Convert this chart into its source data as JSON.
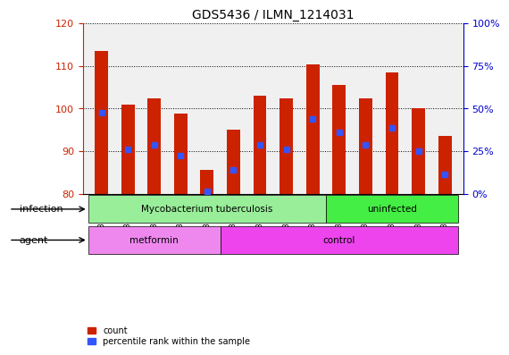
{
  "title": "GDS5436 / ILMN_1214031",
  "samples": [
    "GSM1378196",
    "GSM1378197",
    "GSM1378198",
    "GSM1378199",
    "GSM1378200",
    "GSM1378192",
    "GSM1378193",
    "GSM1378194",
    "GSM1378195",
    "GSM1378201",
    "GSM1378202",
    "GSM1378203",
    "GSM1378204",
    "GSM1378205"
  ],
  "bar_tops": [
    113.5,
    101.0,
    102.5,
    98.8,
    85.5,
    95.0,
    103.0,
    102.5,
    110.5,
    105.5,
    102.5,
    108.5,
    100.0,
    93.5
  ],
  "bar_bottoms": 80,
  "blue_values": [
    99.0,
    90.5,
    91.5,
    89.0,
    80.5,
    85.5,
    91.5,
    90.5,
    97.5,
    94.5,
    91.5,
    95.5,
    90.0,
    84.5
  ],
  "ylim_left": [
    80,
    120
  ],
  "yticks_left": [
    80,
    90,
    100,
    110,
    120
  ],
  "ylim_right": [
    0,
    100
  ],
  "yticks_right": [
    0,
    25,
    50,
    75,
    100
  ],
  "yright_labels": [
    "0%",
    "25%",
    "50%",
    "75%",
    "100%"
  ],
  "bar_color": "#cc2200",
  "blue_color": "#3355ff",
  "infection_groups": [
    {
      "label": "Mycobacterium tuberculosis",
      "start": 0,
      "end": 9,
      "color": "#99ee99"
    },
    {
      "label": "uninfected",
      "start": 9,
      "end": 14,
      "color": "#44ee44"
    }
  ],
  "agent_groups": [
    {
      "label": "metformin",
      "start": 0,
      "end": 5,
      "color": "#ee88ee"
    },
    {
      "label": "control",
      "start": 5,
      "end": 14,
      "color": "#ee44ee"
    }
  ],
  "infection_label": "infection",
  "agent_label": "agent",
  "legend_count_label": "count",
  "legend_pct_label": "percentile rank within the sample",
  "tick_color_left": "#cc2200",
  "tick_color_right": "#0000cc",
  "bg_color": "#f0f0f0"
}
